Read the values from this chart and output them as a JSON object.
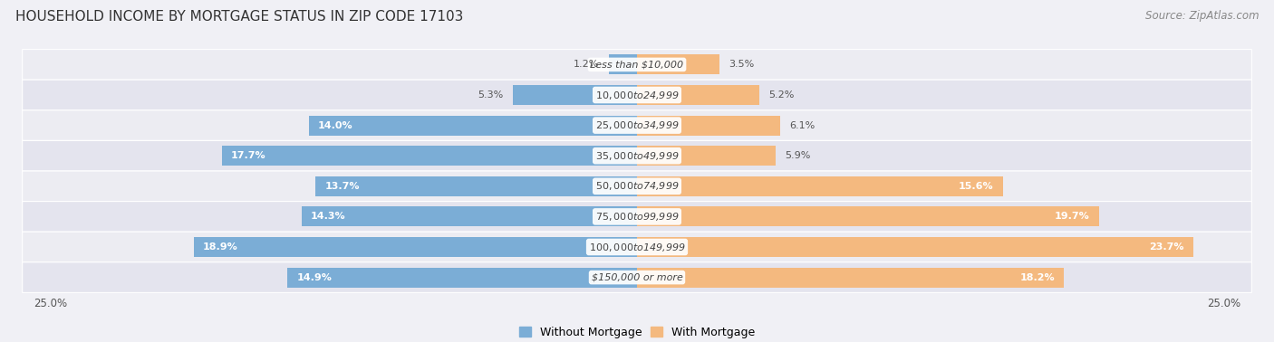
{
  "title": "HOUSEHOLD INCOME BY MORTGAGE STATUS IN ZIP CODE 17103",
  "source": "Source: ZipAtlas.com",
  "categories": [
    "Less than $10,000",
    "$10,000 to $24,999",
    "$25,000 to $34,999",
    "$35,000 to $49,999",
    "$50,000 to $74,999",
    "$75,000 to $99,999",
    "$100,000 to $149,999",
    "$150,000 or more"
  ],
  "without_mortgage": [
    1.2,
    5.3,
    14.0,
    17.7,
    13.7,
    14.3,
    18.9,
    14.9
  ],
  "with_mortgage": [
    3.5,
    5.2,
    6.1,
    5.9,
    15.6,
    19.7,
    23.7,
    18.2
  ],
  "color_without": "#7badd6",
  "color_with": "#f4b97f",
  "xlim": 25.0,
  "title_fontsize": 11,
  "source_fontsize": 8.5,
  "label_fontsize": 8,
  "bar_label_fontsize": 8,
  "legend_fontsize": 9,
  "background_color": "#f0f0f5"
}
